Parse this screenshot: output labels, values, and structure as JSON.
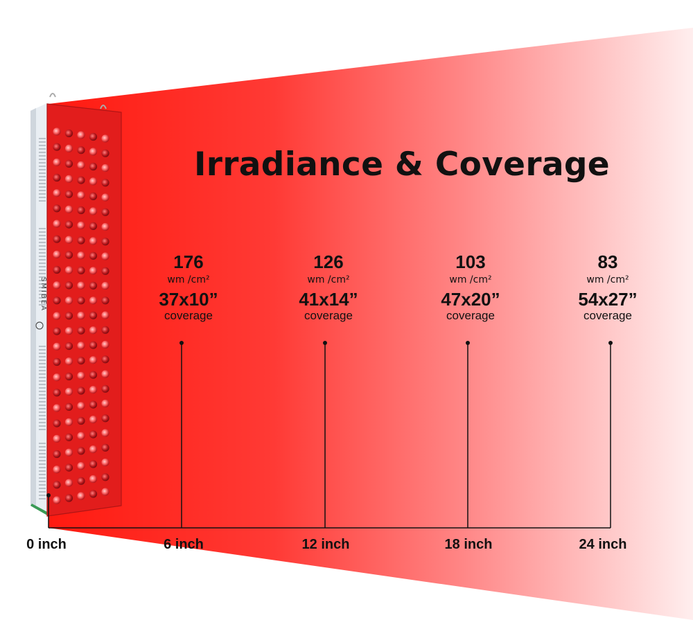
{
  "title": "Irradiance & Coverage",
  "brand": "SMIBEA",
  "colors": {
    "beam": "#ff1a10",
    "panel": "#e21d1c",
    "line": "#111111"
  },
  "measurements": [
    {
      "irradiance": "176",
      "unit": "wm /cm²",
      "coverage": "37x10”",
      "coverage_label": "coverage",
      "distance": "6 inch"
    },
    {
      "irradiance": "126",
      "unit": "wm /cm²",
      "coverage": "41x14”",
      "coverage_label": "coverage",
      "distance": "12 inch"
    },
    {
      "irradiance": "103",
      "unit": "wm /cm²",
      "coverage": "47x20”",
      "coverage_label": "coverage",
      "distance": "18 inch"
    },
    {
      "irradiance": "83",
      "unit": "wm /cm²",
      "coverage": "54x27”",
      "coverage_label": "coverage",
      "distance": "24 inch"
    }
  ],
  "origin_label": "0 inch"
}
